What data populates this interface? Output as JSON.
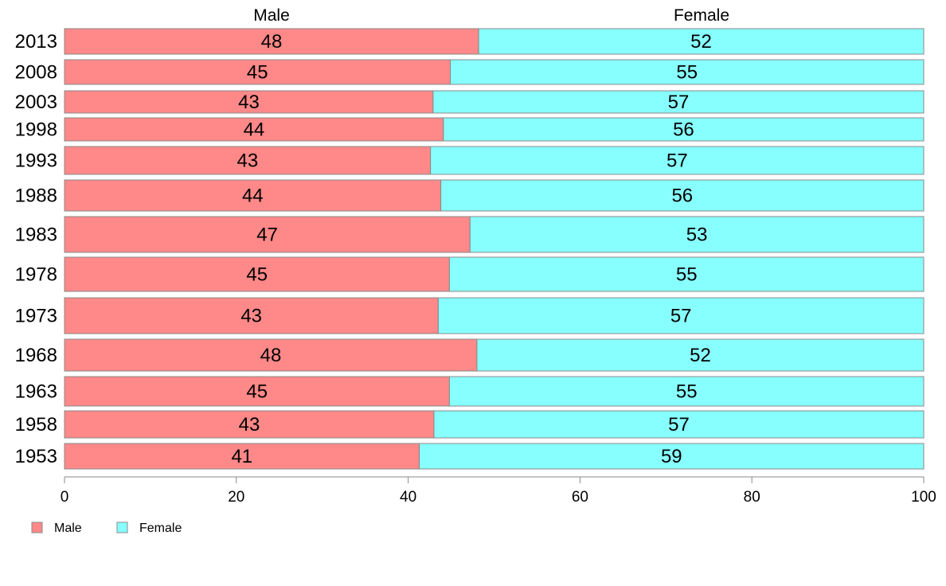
{
  "chart_data": {
    "type": "bar",
    "orientation": "horizontal",
    "stacked": true,
    "column_headers": [
      "Male",
      "Female"
    ],
    "categories": [
      "2013",
      "2008",
      "2003",
      "1998",
      "1993",
      "1988",
      "1983",
      "1978",
      "1973",
      "1968",
      "1963",
      "1958",
      "1953"
    ],
    "series": [
      {
        "name": "Male",
        "color": "#ff8888",
        "values": [
          48.2,
          44.9,
          42.9,
          44.1,
          42.6,
          43.8,
          47.2,
          44.8,
          43.5,
          48.0,
          44.8,
          43.0,
          41.3
        ]
      },
      {
        "name": "Female",
        "color": "#88ffff",
        "values": [
          51.8,
          55.1,
          57.1,
          55.9,
          57.4,
          56.2,
          52.8,
          55.2,
          56.5,
          52.0,
          55.2,
          57.0,
          58.7
        ]
      }
    ],
    "data_labels": {
      "Male": [
        "48",
        "45",
        "43",
        "44",
        "43",
        "44",
        "47",
        "45",
        "43",
        "48",
        "45",
        "43",
        "41"
      ],
      "Female": [
        "52",
        "55",
        "57",
        "56",
        "57",
        "56",
        "53",
        "55",
        "57",
        "52",
        "55",
        "57",
        "59"
      ]
    },
    "xlim": [
      0,
      100
    ],
    "xticks": [
      0,
      20,
      40,
      60,
      80,
      100
    ],
    "legend_position": "bottom-left",
    "grid": false,
    "bar_border_color": "#888888",
    "axis_color": "#888888"
  }
}
